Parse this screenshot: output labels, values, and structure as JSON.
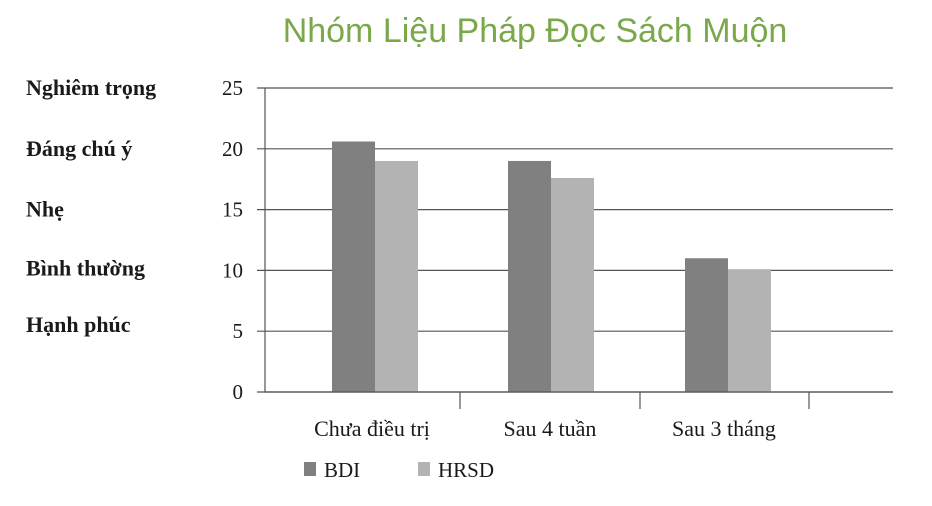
{
  "chart_data": {
    "type": "bar",
    "title": "Nhóm Liệu Pháp Đọc Sách Muộn",
    "categories": [
      "Chưa điều trị",
      "Sau 4 tuần",
      "Sau 3 tháng"
    ],
    "series": [
      {
        "name": "BDI",
        "values": [
          20.6,
          19.0,
          11.0
        ],
        "color": "#808080"
      },
      {
        "name": "HRSD",
        "values": [
          19.0,
          17.6,
          10.1
        ],
        "color": "#b3b3b3"
      }
    ],
    "ylim": [
      0,
      25
    ],
    "yticks": [
      "0",
      "5",
      "10",
      "15",
      "20",
      "25"
    ],
    "severity_labels": [
      "Nghiêm trọng",
      "Đáng chú ý",
      "Nhẹ",
      "Bình thường",
      "Hạnh phúc"
    ],
    "grid": true,
    "legend_position": "bottom-left"
  }
}
